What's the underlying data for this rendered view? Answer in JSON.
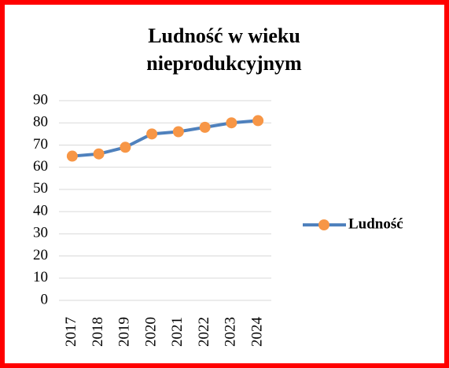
{
  "chart_data": {
    "type": "line",
    "title": "Ludność w wieku nieprodukcyjnym",
    "categories": [
      "2017",
      "2018",
      "2019",
      "2020",
      "2021",
      "2022",
      "2023",
      "2024"
    ],
    "series": [
      {
        "name": "Ludność",
        "color": "#4f81bd",
        "marker_color": "#f79646",
        "values": [
          65,
          66,
          69,
          75,
          76,
          78,
          80,
          81
        ]
      }
    ],
    "ylim": [
      0,
      90
    ],
    "yticks": [
      0,
      10,
      20,
      30,
      40,
      50,
      60,
      70,
      80,
      90
    ],
    "grid": true,
    "legend": "right"
  }
}
